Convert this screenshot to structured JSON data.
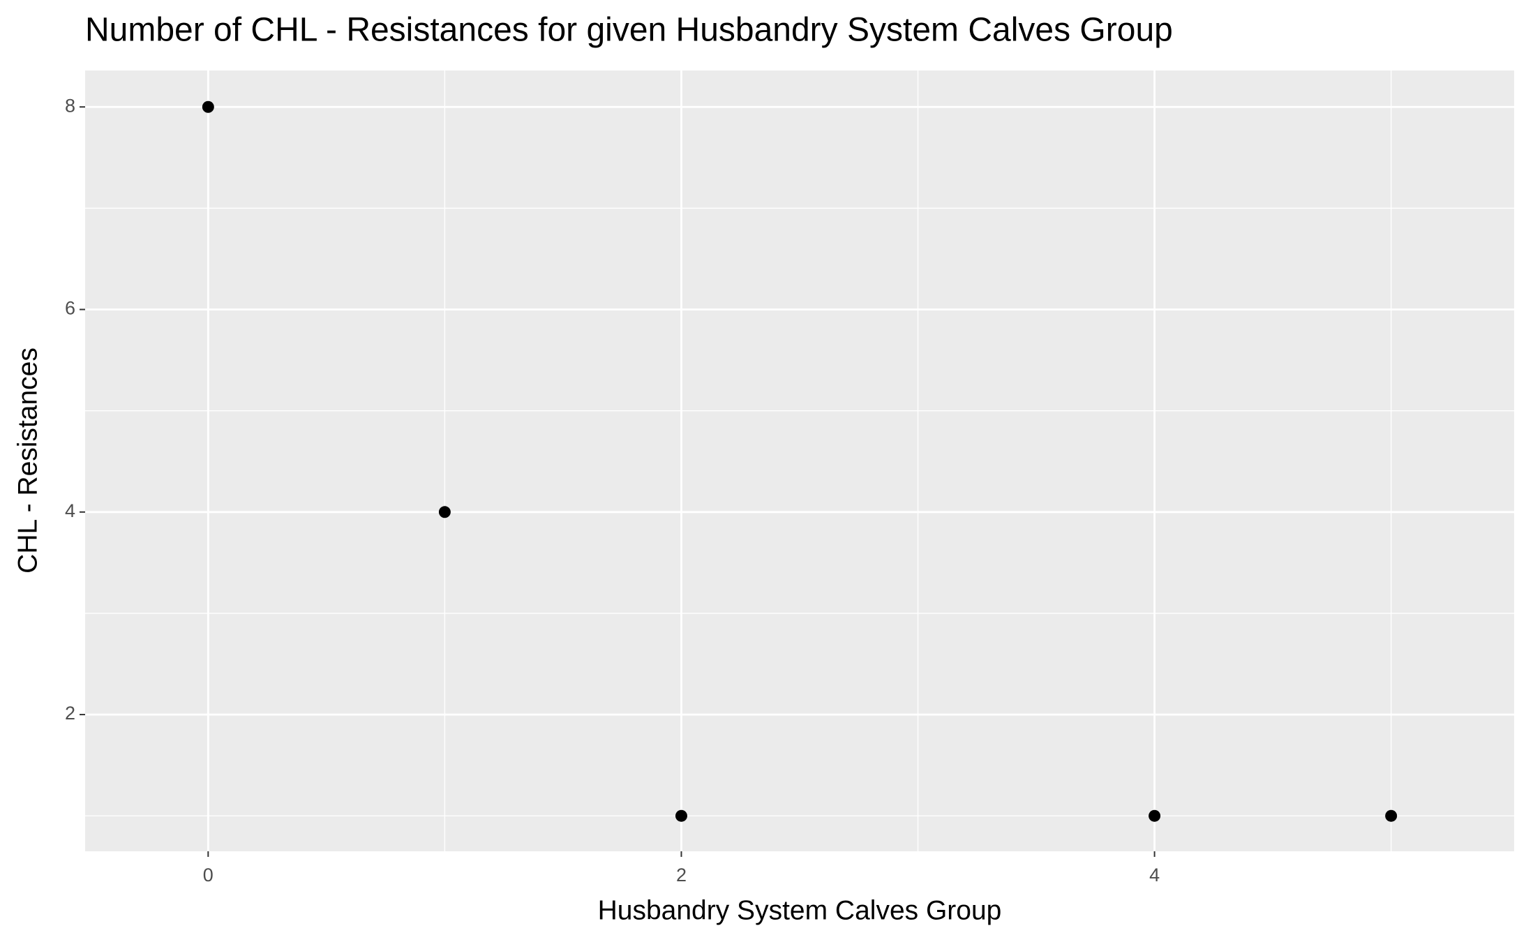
{
  "chart_data": {
    "type": "scatter",
    "title": "Number of CHL - Resistances for given Husbandry System Calves Group",
    "x_label": "Husbandry System Calves Group",
    "y_label": "CHL - Resistances",
    "x": [
      0,
      1,
      2,
      4,
      5
    ],
    "values": [
      8,
      4,
      1,
      1,
      1
    ],
    "color": "#000000",
    "xlim": [
      -0.52,
      5.52
    ],
    "xticks": [
      0,
      2,
      4
    ],
    "xminor": [
      1,
      3,
      5
    ],
    "ylim": [
      0.65,
      8.36
    ],
    "yticks": [
      2,
      4,
      6,
      8
    ],
    "yminor": [
      1,
      3,
      5,
      7
    ],
    "grid": true
  }
}
